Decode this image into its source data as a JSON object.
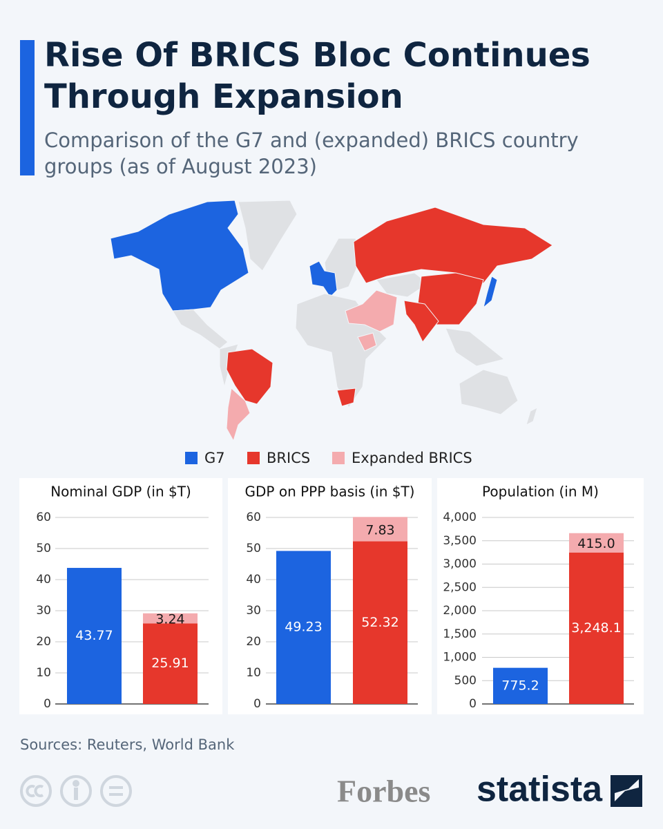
{
  "header": {
    "title": "Rise Of BRICS Bloc Continues Through Expansion",
    "subtitle": "Comparison of the G7 and (expanded) BRICS country groups (as of August 2023)"
  },
  "chart_data": [
    {
      "type": "bar",
      "stacked": true,
      "title": "Nominal GDP (in $T)",
      "series": [
        {
          "name": "G7",
          "color": "#1c64e0",
          "values": [
            43.77,
            null
          ]
        },
        {
          "name": "BRICS",
          "color": "#e6372c",
          "values": [
            null,
            25.91
          ]
        },
        {
          "name": "Expanded BRICS",
          "color": "#f4abae",
          "values": [
            null,
            3.24
          ]
        }
      ],
      "ylim": [
        0,
        60
      ],
      "yticks": [
        0,
        10,
        20,
        30,
        40,
        50,
        60
      ],
      "grid": true
    },
    {
      "type": "bar",
      "stacked": true,
      "title": "GDP on PPP basis (in $T)",
      "series": [
        {
          "color": "#1c64e0",
          "values": [
            49.23,
            null
          ]
        },
        {
          "color": "#e6372c",
          "values": [
            null,
            52.32
          ]
        },
        {
          "color": "#f4abae",
          "values": [
            null,
            7.83
          ]
        }
      ],
      "ylim": [
        0,
        60
      ],
      "yticks": [
        0,
        10,
        20,
        30,
        40,
        50,
        60
      ],
      "grid": true
    },
    {
      "type": "bar",
      "stacked": true,
      "title": "Population (in M)",
      "series": [
        {
          "color": "#1c64e0",
          "values": [
            775.2,
            null
          ]
        },
        {
          "color": "#e6372c",
          "values": [
            null,
            3248.1
          ],
          "value_labels": [
            null,
            "3,248.1"
          ]
        },
        {
          "color": "#f4abae",
          "values": [
            null,
            415
          ],
          "value_labels": [
            null,
            "415.0"
          ]
        }
      ],
      "ylim": [
        0,
        4000
      ],
      "yticks": [
        0,
        500,
        {
          "value": 1000,
          "label": "1,000"
        },
        {
          "value": 1500,
          "label": "1,500"
        },
        {
          "value": 2000,
          "label": "2,000"
        },
        {
          "value": 2500,
          "label": "2,500"
        },
        {
          "value": 3000,
          "label": "3,000"
        },
        {
          "value": 3500,
          "label": "3,500"
        },
        {
          "value": 4000,
          "label": "4,000"
        }
      ],
      "grid": true
    }
  ],
  "footer": {
    "source": "Sources: Reuters, World Bank",
    "partner": "Forbes",
    "brand": "statista"
  }
}
